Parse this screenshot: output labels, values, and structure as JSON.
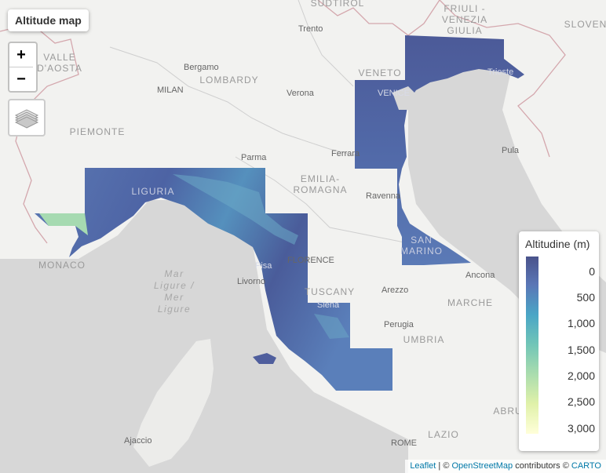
{
  "map": {
    "title": "Altitude map",
    "zoom_in_label": "+",
    "zoom_out_label": "−",
    "layers_icon": "layers-icon"
  },
  "legend": {
    "title": "Altitudine (m)",
    "ticks": [
      "0",
      "500",
      "1,000",
      "1,500",
      "2,000",
      "2,500",
      "3,000"
    ],
    "colors": [
      "#4a538b",
      "#5a76b6",
      "#4aa6c6",
      "#72c6b7",
      "#a9dcae",
      "#e0f1a9",
      "#ffffd9"
    ]
  },
  "regions": {
    "sudtirol": "SÜDTIROL",
    "friuli": "FRIULI -\nVENEZIA\nGIULIA",
    "slovenia": "SLOVEN",
    "valle": "VALLE\nD'AOSTA",
    "lombardy": "LOMBARDY",
    "veneto": "VENETO",
    "piemonte": "PIEMONTE",
    "emilia": "EMILIA-\nROMAGNA",
    "liguria": "LIGURIA",
    "monaco": "MONACO",
    "san_marino": "SAN\nMARINO",
    "tuscany": "TUSCANY",
    "marche": "MARCHE",
    "umbria": "UMBRIA",
    "abruzzo": "ABRU",
    "lazio": "LAZIO"
  },
  "cities": {
    "trento": "Trento",
    "bergamo": "Bergamo",
    "milan": "MILAN",
    "verona": "Verona",
    "venice": "VENICE",
    "trieste": "Trieste",
    "parma": "Parma",
    "ferrara": "Ferrara",
    "pula": "Pula",
    "ravenna": "Ravenna",
    "florence": "FLORENCE",
    "pisa": "Pisa",
    "livorno": "Livorno",
    "ancona": "Ancona",
    "siena": "Siena",
    "arezzo": "Arezzo",
    "perugia": "Perugia",
    "ajaccio": "Ajaccio",
    "rome": "ROME"
  },
  "sea": {
    "ligure": "Mar\nLigure /\nMer\nLigure"
  },
  "attribution": {
    "leaflet": "Leaflet",
    "sep": " | © ",
    "osm": "OpenStreetMap",
    "contrib": " contributors © ",
    "carto": "CARTO"
  }
}
